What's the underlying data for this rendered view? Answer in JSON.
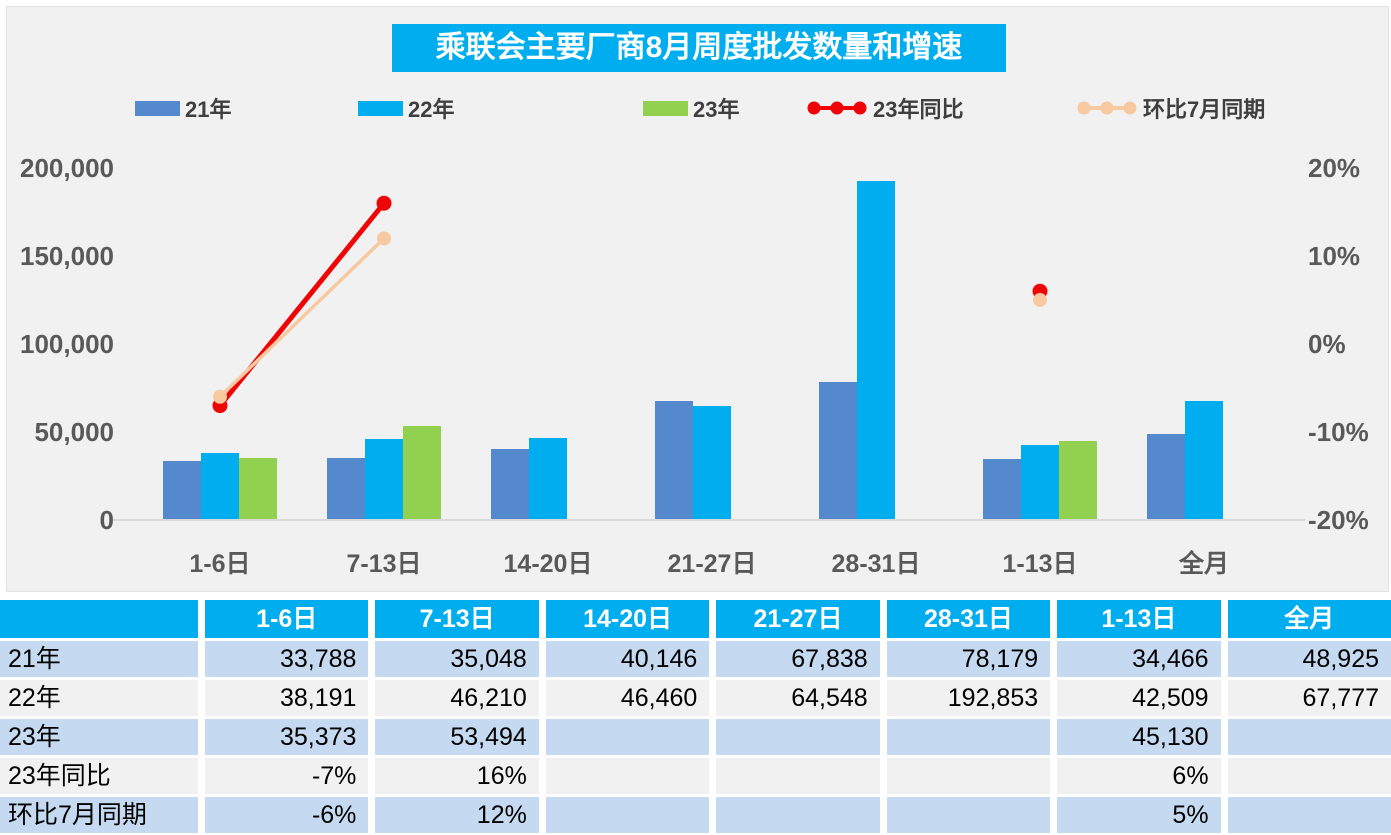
{
  "title": {
    "text": "乘联会主要厂商8月周度批发数量和增速",
    "bg_color": "#00AEEF",
    "text_color": "#FFFFFF"
  },
  "legend": [
    {
      "label": "21年",
      "marker": "bar",
      "color": "#5589CE"
    },
    {
      "label": "22年",
      "marker": "bar",
      "color": "#00AEEF"
    },
    {
      "label": "23年",
      "marker": "bar",
      "color": "#92D050"
    },
    {
      "label": "23年同比",
      "marker": "line-dots",
      "color": "#EE0505"
    },
    {
      "label": "环比7月同期",
      "marker": "line-dots",
      "color": "#F7C9A0"
    }
  ],
  "chart_data": {
    "type": "bar",
    "subtype": "grouped bars + line series on secondary percent axis",
    "title": "乘联会主要厂商8月周度批发数量和增速",
    "categories": [
      "1-6日",
      "7-13日",
      "14-20日",
      "21-27日",
      "28-31日",
      "1-13日",
      "全月"
    ],
    "series": [
      {
        "name": "21年",
        "type": "bar",
        "color": "#5589CE",
        "values": [
          33788,
          35048,
          40146,
          67838,
          78179,
          34466,
          48925
        ]
      },
      {
        "name": "22年",
        "type": "bar",
        "color": "#00AEEF",
        "values": [
          38191,
          46210,
          46460,
          64548,
          192853,
          42509,
          67777
        ]
      },
      {
        "name": "23年",
        "type": "bar",
        "color": "#92D050",
        "values": [
          35373,
          53494,
          null,
          null,
          null,
          45130,
          null
        ]
      },
      {
        "name": "23年同比",
        "type": "line",
        "axis": "right",
        "color": "#EE0505",
        "values": [
          -7,
          16,
          null,
          null,
          null,
          6,
          null
        ]
      },
      {
        "name": "环比7月同期",
        "type": "line",
        "axis": "right",
        "color": "#F7C9A0",
        "values": [
          -6,
          12,
          null,
          null,
          null,
          5,
          null
        ]
      }
    ],
    "left_axis": {
      "min": 0,
      "max": 200000,
      "tick_labels": [
        "200,000",
        "150,000",
        "100,000",
        "50,000",
        "0"
      ]
    },
    "right_axis": {
      "min": -20,
      "max": 20,
      "tick_labels": [
        "20%",
        "10%",
        "0%",
        "-10%",
        "-20%"
      ]
    },
    "grid": false,
    "legend_position": "top"
  },
  "table": {
    "header": [
      "",
      "1-6日",
      "7-13日",
      "14-20日",
      "21-27日",
      "28-31日",
      "1-13日",
      "全月"
    ],
    "rows": [
      {
        "label": "21年",
        "cells": [
          "33,788",
          "35,048",
          "40,146",
          "67,838",
          "78,179",
          "34,466",
          "48,925"
        ]
      },
      {
        "label": "22年",
        "cells": [
          "38,191",
          "46,210",
          "46,460",
          "64,548",
          "192,853",
          "42,509",
          "67,777"
        ]
      },
      {
        "label": "23年",
        "cells": [
          "35,373",
          "53,494",
          "",
          "",
          "",
          "45,130",
          ""
        ]
      },
      {
        "label": "23年同比",
        "cells": [
          "-7%",
          "16%",
          "",
          "",
          "",
          "6%",
          ""
        ]
      },
      {
        "label": "环比7月同期",
        "cells": [
          "-6%",
          "12%",
          "",
          "",
          "",
          "5%",
          ""
        ]
      }
    ],
    "row_colors": [
      "#C5DAF1",
      "#F1F1F1",
      "#C5DAF1",
      "#F1F1F1",
      "#C5DAF1"
    ]
  },
  "colors": {
    "chart_background": "#F1F1F1",
    "header_cyan": "#00AEEF",
    "bar_blue": "#5589CE",
    "bar_cyan": "#00AEEF",
    "bar_green": "#92D050",
    "line_red": "#EE0505",
    "line_peach": "#F7C9A0",
    "axis_text": "#595959",
    "table_row_blue": "#C5DAF1",
    "table_row_gray": "#F1F1F1"
  }
}
